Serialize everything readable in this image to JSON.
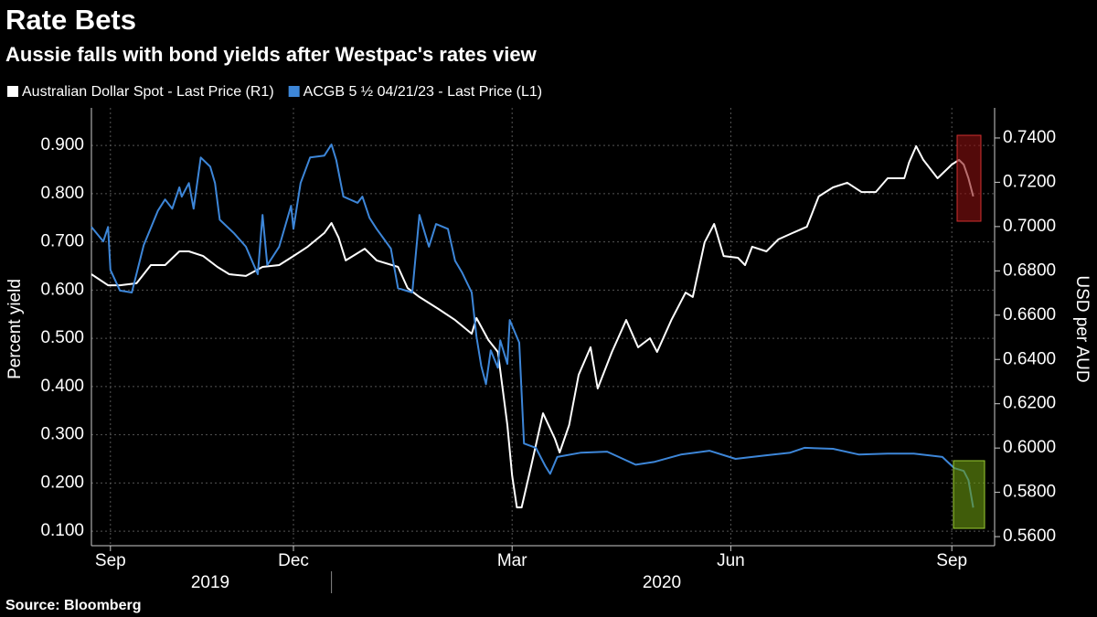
{
  "chart_data": {
    "type": "line",
    "title": "Rate Bets",
    "subtitle": "Aussie falls with bond yields after Westpac's rates view",
    "ylabel": "Percent yield",
    "y2label": "USD per AUD",
    "source": "Source: Bloomberg",
    "xlim": [
      0,
      380
    ],
    "xticks": [
      {
        "value": 8,
        "label": "Sep"
      },
      {
        "value": 85,
        "label": "Dec"
      },
      {
        "value": 177,
        "label": "Mar"
      },
      {
        "value": 269,
        "label": "Jun"
      },
      {
        "value": 362,
        "label": "Sep"
      }
    ],
    "year_labels": [
      {
        "value": 50,
        "label": "2019"
      },
      {
        "value": 240,
        "label": "2020"
      }
    ],
    "year_divider": 101,
    "ylim": [
      0.07,
      0.978
    ],
    "yticks": [
      {
        "value": 0.1,
        "label": "0.100"
      },
      {
        "value": 0.2,
        "label": "0.200"
      },
      {
        "value": 0.3,
        "label": "0.300"
      },
      {
        "value": 0.4,
        "label": "0.400"
      },
      {
        "value": 0.5,
        "label": "0.500"
      },
      {
        "value": 0.6,
        "label": "0.600"
      },
      {
        "value": 0.7,
        "label": "0.700"
      },
      {
        "value": 0.8,
        "label": "0.800"
      },
      {
        "value": 0.9,
        "label": "0.900"
      }
    ],
    "y2lim": [
      0.5559,
      0.7536
    ],
    "y2ticks": [
      {
        "value": 0.56,
        "label": "0.5600"
      },
      {
        "value": 0.58,
        "label": "0.5800"
      },
      {
        "value": 0.6,
        "label": "0.6000"
      },
      {
        "value": 0.62,
        "label": "0.6200"
      },
      {
        "value": 0.64,
        "label": "0.6400"
      },
      {
        "value": 0.66,
        "label": "0.6600"
      },
      {
        "value": 0.68,
        "label": "0.6800"
      },
      {
        "value": 0.7,
        "label": "0.7000"
      },
      {
        "value": 0.72,
        "label": "0.7200"
      },
      {
        "value": 0.74,
        "label": "0.7400"
      }
    ],
    "grid": true,
    "series": [
      {
        "name": "Australian Dollar Spot - Last Price (R1)",
        "color": "#ffffff",
        "axis": "y2",
        "x": [
          0,
          7,
          12,
          19,
          25,
          31,
          37,
          41,
          47,
          53,
          58,
          65,
          72,
          79,
          85,
          91,
          98,
          101,
          104,
          107,
          115,
          120,
          129,
          133,
          138,
          146,
          153,
          160,
          162,
          167,
          171,
          173,
          175,
          177,
          179,
          181,
          185,
          190,
          195,
          197,
          201,
          205,
          210,
          213,
          219,
          225,
          230,
          235,
          238,
          244,
          250,
          253,
          258,
          262,
          266,
          272,
          275,
          278,
          284,
          289,
          295,
          301,
          306,
          312,
          318,
          324,
          330,
          335,
          342,
          344,
          347,
          350,
          356,
          362,
          365,
          367,
          369,
          371
        ],
        "values": [
          0.6785,
          0.6735,
          0.6735,
          0.6744,
          0.6826,
          0.6826,
          0.6888,
          0.6888,
          0.6867,
          0.6818,
          0.6785,
          0.6777,
          0.6818,
          0.6826,
          0.6867,
          0.6909,
          0.6971,
          0.7016,
          0.695,
          0.6847,
          0.69,
          0.6847,
          0.6818,
          0.6723,
          0.6682,
          0.6628,
          0.6578,
          0.6516,
          0.6587,
          0.6488,
          0.6434,
          0.6269,
          0.6104,
          0.5876,
          0.5732,
          0.5732,
          0.5918,
          0.6157,
          0.6042,
          0.598,
          0.6104,
          0.6331,
          0.6455,
          0.6269,
          0.6434,
          0.6578,
          0.6455,
          0.6496,
          0.6434,
          0.6578,
          0.6702,
          0.6682,
          0.6929,
          0.7012,
          0.6867,
          0.6859,
          0.6826,
          0.6909,
          0.6888,
          0.6942,
          0.6971,
          0.6999,
          0.7136,
          0.7177,
          0.7198,
          0.7156,
          0.7156,
          0.7218,
          0.7218,
          0.7289,
          0.7363,
          0.7301,
          0.7218,
          0.728,
          0.7301,
          0.728,
          0.7218,
          0.7136
        ]
      },
      {
        "name": "ACGB 5 ½ 04/21/23 - Last Price (L1)",
        "color": "#3d86d8",
        "axis": "y",
        "x": [
          0,
          5,
          7,
          8,
          12,
          17,
          22,
          28,
          31,
          34,
          37,
          38,
          41,
          43,
          46,
          50,
          52,
          54,
          60,
          65,
          70,
          72,
          74,
          79,
          84,
          85,
          88,
          92,
          98,
          101,
          103,
          106,
          112,
          114,
          117,
          120,
          126,
          129,
          135,
          138,
          142,
          145,
          150,
          153,
          156,
          160,
          162,
          164,
          166,
          168,
          171,
          172,
          175,
          176,
          180,
          182,
          187,
          191,
          193,
          196,
          206,
          217,
          229,
          237,
          248,
          260,
          271,
          283,
          294,
          300,
          312,
          323,
          335,
          346,
          358,
          363,
          367,
          369,
          371
        ],
        "values": [
          0.731,
          0.701,
          0.731,
          0.642,
          0.599,
          0.595,
          0.693,
          0.765,
          0.788,
          0.769,
          0.813,
          0.794,
          0.822,
          0.769,
          0.875,
          0.856,
          0.822,
          0.746,
          0.718,
          0.69,
          0.633,
          0.756,
          0.652,
          0.69,
          0.775,
          0.727,
          0.822,
          0.875,
          0.879,
          0.902,
          0.87,
          0.794,
          0.781,
          0.794,
          0.75,
          0.727,
          0.686,
          0.604,
          0.595,
          0.756,
          0.69,
          0.737,
          0.727,
          0.661,
          0.636,
          0.595,
          0.504,
          0.443,
          0.405,
          0.475,
          0.439,
          0.496,
          0.447,
          0.538,
          0.491,
          0.282,
          0.273,
          0.235,
          0.219,
          0.254,
          0.263,
          0.265,
          0.238,
          0.244,
          0.259,
          0.267,
          0.25,
          0.257,
          0.263,
          0.273,
          0.271,
          0.259,
          0.261,
          0.261,
          0.254,
          0.231,
          0.225,
          0.206,
          0.149
        ]
      }
    ]
  }
}
